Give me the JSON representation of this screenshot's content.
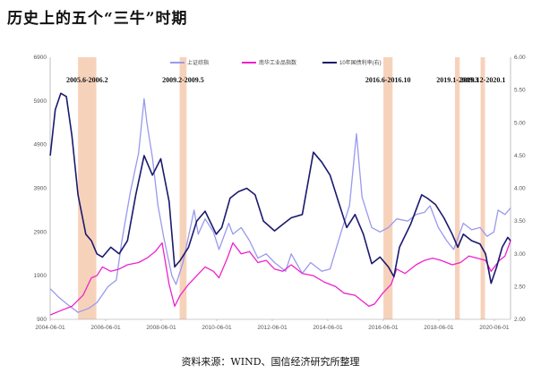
{
  "title": "历史上的五个“三牛”时期",
  "source": "资料来源：WIND、国信经济研究所整理",
  "chart_data": {
    "type": "line",
    "title": "历史上的五个“三牛”时期",
    "x_range": [
      2004.417,
      2021.0
    ],
    "x_ticks": [
      "2004-06-01",
      "2006-06-01",
      "2008-06-01",
      "2010-06-01",
      "2012-06-01",
      "2014-06-01",
      "2016-06-01",
      "2018-06-01",
      "2020-06-01"
    ],
    "left_axis": {
      "min": 900,
      "max": 6900,
      "ticks": [
        "900",
        "1900",
        "2900",
        "3900",
        "4900",
        "5900",
        "6900"
      ]
    },
    "right_axis": {
      "min": 2.0,
      "max": 6.0,
      "ticks": [
        "2.00",
        "2.50",
        "3.00",
        "3.50",
        "4.00",
        "4.50",
        "5.00",
        "5.50",
        "6.00"
      ]
    },
    "legend": [
      {
        "name": "上证综指",
        "color": "#9999ee"
      },
      {
        "name": "南华工业品指数",
        "color": "#ee22cc"
      },
      {
        "name": "10年国债利率(右)",
        "color": "#1a1a6e"
      }
    ],
    "periods": [
      {
        "label": "2005.6-2006.2",
        "start": 2005.42,
        "end": 2006.08
      },
      {
        "label": "2009.2-2009.5",
        "start": 2009.08,
        "end": 2009.33
      },
      {
        "label": "2016.6-2016.10",
        "start": 2016.42,
        "end": 2016.75
      },
      {
        "label": "2019.1-2019.3",
        "start": 2019.0,
        "end": 2019.17
      },
      {
        "label": "2019.12-2020.1",
        "start": 2019.92,
        "end": 2020.08
      }
    ],
    "series": [
      {
        "name": "上证综指",
        "axis": "left",
        "color": "#9999ee",
        "points": [
          [
            2004.42,
            1600
          ],
          [
            2004.7,
            1420
          ],
          [
            2005.0,
            1260
          ],
          [
            2005.42,
            1060
          ],
          [
            2005.8,
            1150
          ],
          [
            2006.1,
            1280
          ],
          [
            2006.5,
            1650
          ],
          [
            2006.8,
            1800
          ],
          [
            2007.0,
            2700
          ],
          [
            2007.3,
            3800
          ],
          [
            2007.6,
            4700
          ],
          [
            2007.8,
            5950
          ],
          [
            2007.9,
            5400
          ],
          [
            2008.1,
            4600
          ],
          [
            2008.3,
            3500
          ],
          [
            2008.5,
            2800
          ],
          [
            2008.8,
            1900
          ],
          [
            2008.95,
            1700
          ],
          [
            2009.2,
            2200
          ],
          [
            2009.5,
            3100
          ],
          [
            2009.6,
            3400
          ],
          [
            2009.75,
            2850
          ],
          [
            2010.0,
            3200
          ],
          [
            2010.3,
            2900
          ],
          [
            2010.5,
            2500
          ],
          [
            2010.85,
            3100
          ],
          [
            2011.0,
            2850
          ],
          [
            2011.3,
            3000
          ],
          [
            2011.6,
            2700
          ],
          [
            2011.9,
            2300
          ],
          [
            2012.2,
            2400
          ],
          [
            2012.5,
            2200
          ],
          [
            2012.9,
            2000
          ],
          [
            2013.1,
            2400
          ],
          [
            2013.5,
            1950
          ],
          [
            2013.8,
            2200
          ],
          [
            2014.2,
            2000
          ],
          [
            2014.5,
            2050
          ],
          [
            2014.9,
            2900
          ],
          [
            2015.2,
            3500
          ],
          [
            2015.45,
            5150
          ],
          [
            2015.65,
            3700
          ],
          [
            2015.8,
            3400
          ],
          [
            2016.0,
            3000
          ],
          [
            2016.3,
            2900
          ],
          [
            2016.6,
            3000
          ],
          [
            2016.9,
            3200
          ],
          [
            2017.3,
            3150
          ],
          [
            2017.6,
            3300
          ],
          [
            2017.9,
            3350
          ],
          [
            2018.1,
            3500
          ],
          [
            2018.4,
            3000
          ],
          [
            2018.7,
            2700
          ],
          [
            2018.95,
            2500
          ],
          [
            2019.3,
            3100
          ],
          [
            2019.6,
            2950
          ],
          [
            2019.9,
            3000
          ],
          [
            2020.15,
            2800
          ],
          [
            2020.4,
            2900
          ],
          [
            2020.55,
            3400
          ],
          [
            2020.8,
            3300
          ],
          [
            2021.0,
            3450
          ]
        ]
      },
      {
        "name": "南华工业品指数",
        "axis": "left",
        "color": "#ee22cc",
        "points": [
          [
            2004.42,
            1000
          ],
          [
            2004.8,
            1100
          ],
          [
            2005.2,
            1200
          ],
          [
            2005.6,
            1450
          ],
          [
            2005.9,
            1850
          ],
          [
            2006.1,
            1900
          ],
          [
            2006.3,
            2100
          ],
          [
            2006.6,
            2000
          ],
          [
            2006.9,
            2050
          ],
          [
            2007.2,
            2150
          ],
          [
            2007.6,
            2200
          ],
          [
            2007.9,
            2300
          ],
          [
            2008.2,
            2450
          ],
          [
            2008.45,
            2650
          ],
          [
            2008.7,
            1700
          ],
          [
            2008.9,
            1200
          ],
          [
            2009.1,
            1450
          ],
          [
            2009.4,
            1700
          ],
          [
            2009.7,
            1900
          ],
          [
            2010.0,
            2100
          ],
          [
            2010.3,
            2000
          ],
          [
            2010.5,
            1850
          ],
          [
            2010.8,
            2300
          ],
          [
            2011.0,
            2650
          ],
          [
            2011.3,
            2400
          ],
          [
            2011.6,
            2450
          ],
          [
            2011.9,
            2200
          ],
          [
            2012.2,
            2250
          ],
          [
            2012.5,
            2050
          ],
          [
            2012.8,
            2000
          ],
          [
            2013.1,
            2150
          ],
          [
            2013.5,
            1950
          ],
          [
            2013.9,
            1900
          ],
          [
            2014.3,
            1750
          ],
          [
            2014.7,
            1650
          ],
          [
            2015.0,
            1500
          ],
          [
            2015.4,
            1450
          ],
          [
            2015.9,
            1200
          ],
          [
            2016.1,
            1250
          ],
          [
            2016.4,
            1500
          ],
          [
            2016.7,
            1700
          ],
          [
            2016.9,
            2050
          ],
          [
            2017.2,
            1950
          ],
          [
            2017.6,
            2150
          ],
          [
            2017.9,
            2250
          ],
          [
            2018.2,
            2300
          ],
          [
            2018.5,
            2250
          ],
          [
            2018.9,
            2150
          ],
          [
            2019.2,
            2200
          ],
          [
            2019.5,
            2350
          ],
          [
            2019.8,
            2300
          ],
          [
            2020.1,
            2250
          ],
          [
            2020.3,
            2000
          ],
          [
            2020.6,
            2250
          ],
          [
            2020.8,
            2350
          ],
          [
            2021.0,
            2700
          ]
        ]
      },
      {
        "name": "10年国债利率(右)",
        "axis": "right",
        "color": "#1a1a6e",
        "points": [
          [
            2004.42,
            4.5
          ],
          [
            2004.6,
            5.2
          ],
          [
            2004.8,
            5.45
          ],
          [
            2005.0,
            5.4
          ],
          [
            2005.2,
            4.8
          ],
          [
            2005.42,
            3.9
          ],
          [
            2005.7,
            3.3
          ],
          [
            2005.9,
            3.2
          ],
          [
            2006.1,
            3.0
          ],
          [
            2006.3,
            2.95
          ],
          [
            2006.6,
            3.1
          ],
          [
            2006.9,
            3.0
          ],
          [
            2007.2,
            3.2
          ],
          [
            2007.5,
            3.9
          ],
          [
            2007.8,
            4.5
          ],
          [
            2008.1,
            4.2
          ],
          [
            2008.4,
            4.45
          ],
          [
            2008.7,
            3.8
          ],
          [
            2008.9,
            2.8
          ],
          [
            2009.1,
            2.9
          ],
          [
            2009.4,
            3.1
          ],
          [
            2009.7,
            3.5
          ],
          [
            2010.0,
            3.65
          ],
          [
            2010.4,
            3.3
          ],
          [
            2010.6,
            3.4
          ],
          [
            2010.9,
            3.85
          ],
          [
            2011.2,
            3.95
          ],
          [
            2011.5,
            4.0
          ],
          [
            2011.8,
            3.9
          ],
          [
            2012.1,
            3.5
          ],
          [
            2012.5,
            3.35
          ],
          [
            2012.8,
            3.45
          ],
          [
            2013.1,
            3.55
          ],
          [
            2013.5,
            3.6
          ],
          [
            2013.9,
            4.55
          ],
          [
            2014.2,
            4.4
          ],
          [
            2014.5,
            4.2
          ],
          [
            2014.8,
            3.8
          ],
          [
            2015.1,
            3.4
          ],
          [
            2015.4,
            3.6
          ],
          [
            2015.7,
            3.3
          ],
          [
            2016.0,
            2.85
          ],
          [
            2016.3,
            2.95
          ],
          [
            2016.6,
            2.8
          ],
          [
            2016.8,
            2.65
          ],
          [
            2017.0,
            3.1
          ],
          [
            2017.4,
            3.45
          ],
          [
            2017.8,
            3.9
          ],
          [
            2018.0,
            3.85
          ],
          [
            2018.3,
            3.75
          ],
          [
            2018.6,
            3.55
          ],
          [
            2018.9,
            3.3
          ],
          [
            2019.1,
            3.1
          ],
          [
            2019.3,
            3.3
          ],
          [
            2019.6,
            3.2
          ],
          [
            2019.9,
            3.15
          ],
          [
            2020.1,
            3.0
          ],
          [
            2020.3,
            2.55
          ],
          [
            2020.5,
            2.8
          ],
          [
            2020.7,
            3.1
          ],
          [
            2020.9,
            3.25
          ],
          [
            2021.0,
            3.2
          ]
        ]
      }
    ]
  }
}
